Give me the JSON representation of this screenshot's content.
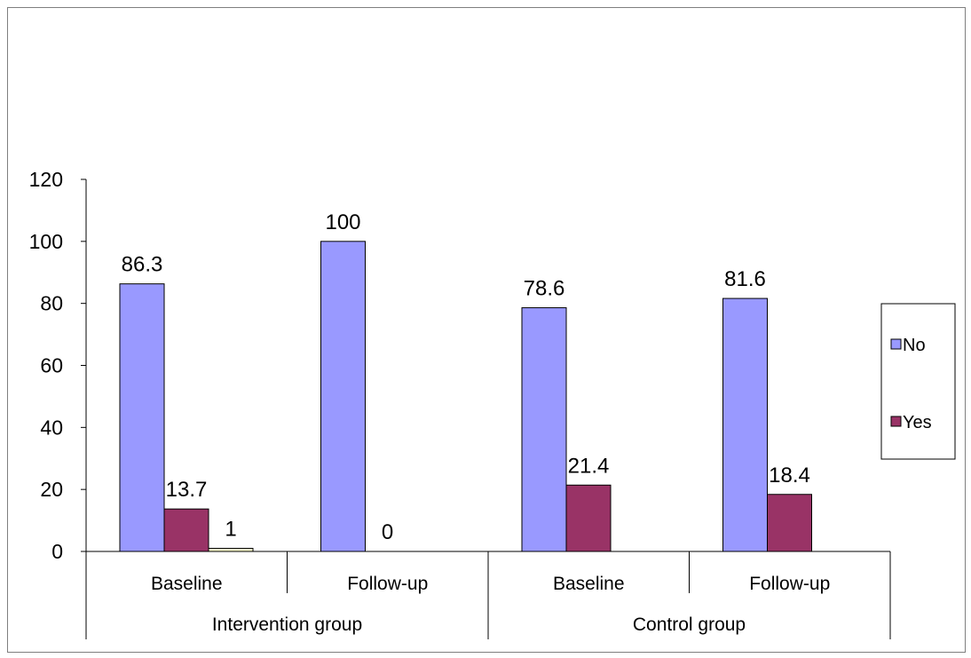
{
  "chart_data": {
    "type": "bar",
    "groups": [
      {
        "label": "Intervention group",
        "categories": [
          "Baseline",
          "Follow-up"
        ]
      },
      {
        "label": "Control group",
        "categories": [
          "Baseline",
          "Follow-up"
        ]
      }
    ],
    "categories": [
      "Baseline",
      "Follow-up",
      "Baseline",
      "Follow-up"
    ],
    "series": [
      {
        "name": "No",
        "values": [
          86.3,
          100,
          78.6,
          81.6
        ],
        "color": "#9999ff"
      },
      {
        "name": "Yes",
        "values": [
          13.7,
          0,
          21.4,
          18.4
        ],
        "color": "#993366"
      },
      {
        "name": "",
        "values": [
          1,
          null,
          null,
          null
        ],
        "color": "#ffffcc"
      }
    ],
    "data_labels": [
      [
        "86.3",
        "100",
        "78.6",
        "81.6"
      ],
      [
        "13.7",
        "0",
        "21.4",
        "18.4"
      ],
      [
        "1",
        "",
        "",
        ""
      ]
    ],
    "ylim": [
      0,
      120
    ],
    "yticks": [
      0,
      20,
      40,
      60,
      80,
      100,
      120
    ],
    "legend_position": "right",
    "grid": false
  }
}
